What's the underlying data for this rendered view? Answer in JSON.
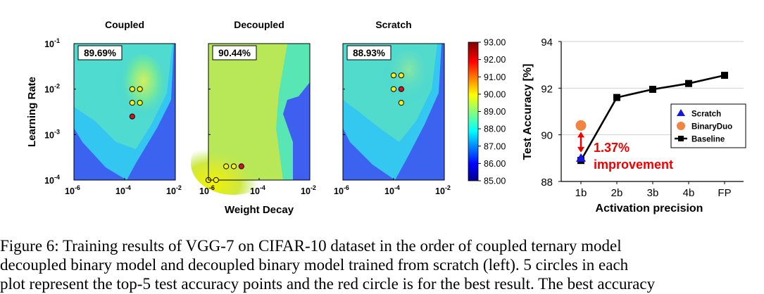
{
  "heatmaps": {
    "titles": [
      "Coupled",
      "Decoupled",
      "Scratch"
    ],
    "accuracy_badges": [
      "89.69%",
      "90.44%",
      "88.93%"
    ],
    "ylabel": "Learning Rate",
    "xlabel": "Weight Decay",
    "y_ticks": [
      "10",
      "10",
      "10",
      "10"
    ],
    "y_tick_exponents": [
      "-1",
      "-2",
      "-3",
      "-4"
    ],
    "x_ticks": [
      "10",
      "10",
      "10"
    ],
    "x_tick_exponents": [
      "-6",
      "-4",
      "-2"
    ],
    "colorbar_ticks": [
      "93.00",
      "92.00",
      "91.00",
      "90.00",
      "89.00",
      "88.00",
      "87.00",
      "86.00",
      "85.00"
    ]
  },
  "line_chart": {
    "ylabel": "Test Accuracy [%]",
    "xlabel": "Activation precision",
    "annotation_line1": "1.37%",
    "annotation_line2": "improvement"
  },
  "caption": {
    "line1": "Figure 6:  Training results of VGG-7 on CIFAR-10 dataset in the order of coupled ternary model",
    "line2": "decoupled binary model and decoupled binary model trained from scratch (left).  5 circles in each",
    "line3": "plot represent the top-5 test accuracy points and the red circle is for the best result.  The best accuracy"
  },
  "chart_data": [
    {
      "type": "heatmap",
      "title": "Coupled",
      "xlabel": "Weight Decay",
      "ylabel": "Learning Rate",
      "x_scale": "log",
      "y_scale": "log",
      "xlim": [
        1e-06,
        0.01
      ],
      "ylim": [
        0.0001,
        0.1
      ],
      "color_range": [
        85.0,
        93.0
      ],
      "best_accuracy": "89.69%",
      "top5_points": [
        {
          "wd": 0.0002,
          "lr": 0.01,
          "best": false
        },
        {
          "wd": 0.0004,
          "lr": 0.01,
          "best": false
        },
        {
          "wd": 0.0002,
          "lr": 0.005,
          "best": false
        },
        {
          "wd": 0.0004,
          "lr": 0.005,
          "best": false
        },
        {
          "wd": 0.0002,
          "lr": 0.0025,
          "best": true
        }
      ]
    },
    {
      "type": "heatmap",
      "title": "Decoupled",
      "xlabel": "Weight Decay",
      "ylabel": "Learning Rate",
      "x_scale": "log",
      "y_scale": "log",
      "xlim": [
        1e-06,
        0.01
      ],
      "ylim": [
        0.0001,
        0.1
      ],
      "color_range": [
        85.0,
        93.0
      ],
      "best_accuracy": "90.44%",
      "top5_points": [
        {
          "wd": 1e-06,
          "lr": 0.0001,
          "best": false
        },
        {
          "wd": 2e-06,
          "lr": 0.0001,
          "best": false
        },
        {
          "wd": 5e-06,
          "lr": 0.0002,
          "best": false
        },
        {
          "wd": 1e-05,
          "lr": 0.0002,
          "best": false
        },
        {
          "wd": 2e-05,
          "lr": 0.0002,
          "best": true
        }
      ]
    },
    {
      "type": "heatmap",
      "title": "Scratch",
      "xlabel": "Weight Decay",
      "ylabel": "Learning Rate",
      "x_scale": "log",
      "y_scale": "log",
      "xlim": [
        1e-06,
        0.01
      ],
      "ylim": [
        0.0001,
        0.1
      ],
      "color_range": [
        85.0,
        93.0
      ],
      "best_accuracy": "88.93%",
      "top5_points": [
        {
          "wd": 0.0001,
          "lr": 0.02,
          "best": false
        },
        {
          "wd": 0.0002,
          "lr": 0.02,
          "best": false
        },
        {
          "wd": 0.0001,
          "lr": 0.01,
          "best": false
        },
        {
          "wd": 0.0002,
          "lr": 0.01,
          "best": true
        },
        {
          "wd": 0.0002,
          "lr": 0.005,
          "best": false
        }
      ]
    },
    {
      "type": "line",
      "xlabel": "Activation precision",
      "ylabel": "Test Accuracy [%]",
      "categories": [
        "1b",
        "2b",
        "3b",
        "4b",
        "FP"
      ],
      "ylim": [
        88,
        94
      ],
      "y_ticks": [
        88,
        90,
        92,
        94
      ],
      "grid": true,
      "legend_position": "lower-right",
      "series": [
        {
          "name": "Scratch",
          "marker": "triangle",
          "color": "#1515e0",
          "points": [
            {
              "x": "1b",
              "y": 89.0
            }
          ]
        },
        {
          "name": "BinaryDuo",
          "marker": "circle",
          "color": "#f08440",
          "points": [
            {
              "x": "1b",
              "y": 90.4
            }
          ]
        },
        {
          "name": "Baseline",
          "marker": "square",
          "color": "#000000",
          "values": [
            88.9,
            91.6,
            91.95,
            92.2,
            92.55
          ]
        }
      ],
      "annotation": {
        "text": "1.37% improvement",
        "color": "#ee0000"
      }
    }
  ]
}
